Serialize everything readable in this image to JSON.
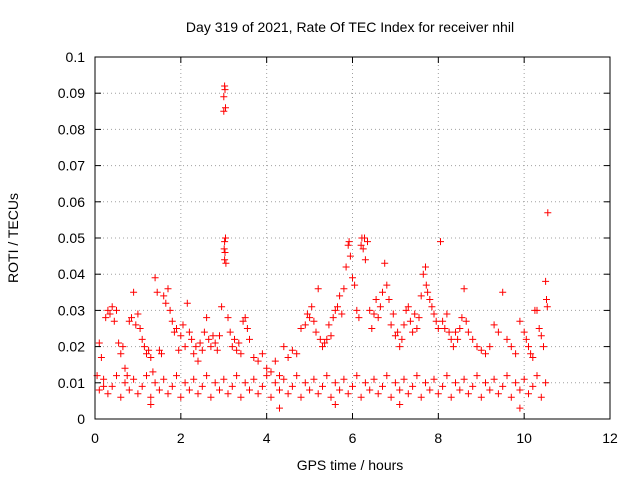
{
  "chart_data": {
    "type": "scatter",
    "title": "Day 319 of 2021, Rate Of TEC Index for receiver nhil",
    "xlabel": "GPS time / hours",
    "ylabel": "ROTI / TECUs",
    "xlim": [
      0,
      12
    ],
    "ylim": [
      0,
      0.1
    ],
    "xticks": [
      "0",
      "2",
      "4",
      "6",
      "8",
      "10",
      "12"
    ],
    "yticks": [
      "0",
      "0.01",
      "0.02",
      "0.03",
      "0.04",
      "0.05",
      "0.06",
      "0.07",
      "0.08",
      "0.09",
      "0.1"
    ],
    "grid": true,
    "marker": "+",
    "color": "#ff0000",
    "series": [
      {
        "name": "ROTI",
        "points": [
          [
            0.05,
            0.012
          ],
          [
            0.1,
            0.021
          ],
          [
            0.15,
            0.017
          ],
          [
            0.2,
            0.009
          ],
          [
            0.25,
            0.028
          ],
          [
            0.3,
            0.03
          ],
          [
            0.35,
            0.029
          ],
          [
            0.4,
            0.031
          ],
          [
            0.45,
            0.027
          ],
          [
            0.5,
            0.03
          ],
          [
            0.55,
            0.021
          ],
          [
            0.6,
            0.018
          ],
          [
            0.65,
            0.02
          ],
          [
            0.7,
            0.014
          ],
          [
            0.75,
            0.012
          ],
          [
            0.8,
            0.027
          ],
          [
            0.85,
            0.028
          ],
          [
            0.9,
            0.035
          ],
          [
            0.95,
            0.026
          ],
          [
            1.0,
            0.029
          ],
          [
            1.05,
            0.025
          ],
          [
            1.1,
            0.022
          ],
          [
            1.15,
            0.02
          ],
          [
            1.2,
            0.018
          ],
          [
            1.25,
            0.019
          ],
          [
            1.3,
            0.017
          ],
          [
            1.35,
            0.013
          ],
          [
            1.4,
            0.039
          ],
          [
            1.45,
            0.035
          ],
          [
            1.5,
            0.019
          ],
          [
            1.55,
            0.018
          ],
          [
            1.6,
            0.034
          ],
          [
            1.65,
            0.032
          ],
          [
            1.7,
            0.036
          ],
          [
            1.75,
            0.03
          ],
          [
            1.8,
            0.027
          ],
          [
            1.85,
            0.024
          ],
          [
            1.9,
            0.025
          ],
          [
            1.95,
            0.019
          ],
          [
            2.0,
            0.023
          ],
          [
            2.05,
            0.026
          ],
          [
            2.1,
            0.02
          ],
          [
            2.15,
            0.032
          ],
          [
            2.2,
            0.024
          ],
          [
            2.25,
            0.022
          ],
          [
            2.3,
            0.018
          ],
          [
            2.35,
            0.02
          ],
          [
            2.4,
            0.016
          ],
          [
            2.45,
            0.021
          ],
          [
            2.5,
            0.019
          ],
          [
            2.55,
            0.024
          ],
          [
            2.6,
            0.028
          ],
          [
            2.65,
            0.022
          ],
          [
            2.7,
            0.02
          ],
          [
            2.75,
            0.023
          ],
          [
            2.8,
            0.021
          ],
          [
            2.85,
            0.019
          ],
          [
            2.9,
            0.023
          ],
          [
            2.95,
            0.031
          ],
          [
            3.0,
            0.085
          ],
          [
            3.0,
            0.089
          ],
          [
            3.02,
            0.092
          ],
          [
            3.03,
            0.091
          ],
          [
            3.04,
            0.086
          ],
          [
            3.01,
            0.047
          ],
          [
            3.02,
            0.049
          ],
          [
            3.04,
            0.05
          ],
          [
            3.03,
            0.046
          ],
          [
            3.02,
            0.044
          ],
          [
            3.05,
            0.043
          ],
          [
            3.1,
            0.028
          ],
          [
            3.15,
            0.024
          ],
          [
            3.2,
            0.02
          ],
          [
            3.25,
            0.022
          ],
          [
            3.3,
            0.019
          ],
          [
            3.35,
            0.021
          ],
          [
            3.4,
            0.018
          ],
          [
            3.45,
            0.027
          ],
          [
            3.5,
            0.028
          ],
          [
            3.55,
            0.025
          ],
          [
            3.6,
            0.022
          ],
          [
            3.7,
            0.017
          ],
          [
            3.8,
            0.016
          ],
          [
            3.9,
            0.018
          ],
          [
            4.0,
            0.014
          ],
          [
            4.1,
            0.013
          ],
          [
            4.2,
            0.016
          ],
          [
            4.3,
            0.012
          ],
          [
            4.4,
            0.02
          ],
          [
            4.5,
            0.017
          ],
          [
            4.6,
            0.019
          ],
          [
            4.7,
            0.018
          ],
          [
            4.8,
            0.025
          ],
          [
            4.9,
            0.026
          ],
          [
            4.95,
            0.029
          ],
          [
            5.0,
            0.028
          ],
          [
            5.05,
            0.031
          ],
          [
            5.1,
            0.027
          ],
          [
            5.15,
            0.024
          ],
          [
            5.2,
            0.036
          ],
          [
            5.25,
            0.022
          ],
          [
            5.3,
            0.02
          ],
          [
            5.35,
            0.021
          ],
          [
            5.4,
            0.022
          ],
          [
            5.45,
            0.026
          ],
          [
            5.5,
            0.023
          ],
          [
            5.55,
            0.028
          ],
          [
            5.6,
            0.03
          ],
          [
            5.65,
            0.031
          ],
          [
            5.7,
            0.034
          ],
          [
            5.75,
            0.029
          ],
          [
            5.8,
            0.036
          ],
          [
            5.85,
            0.042
          ],
          [
            5.9,
            0.048
          ],
          [
            5.92,
            0.049
          ],
          [
            5.95,
            0.045
          ],
          [
            6.0,
            0.039
          ],
          [
            6.05,
            0.037
          ],
          [
            6.1,
            0.03
          ],
          [
            6.15,
            0.028
          ],
          [
            6.2,
            0.048
          ],
          [
            6.22,
            0.05
          ],
          [
            6.25,
            0.047
          ],
          [
            6.28,
            0.05
          ],
          [
            6.3,
            0.044
          ],
          [
            6.35,
            0.049
          ],
          [
            6.4,
            0.03
          ],
          [
            6.45,
            0.025
          ],
          [
            6.5,
            0.029
          ],
          [
            6.55,
            0.033
          ],
          [
            6.6,
            0.028
          ],
          [
            6.65,
            0.031
          ],
          [
            6.7,
            0.035
          ],
          [
            6.75,
            0.043
          ],
          [
            6.8,
            0.037
          ],
          [
            6.85,
            0.033
          ],
          [
            6.9,
            0.026
          ],
          [
            6.95,
            0.029
          ],
          [
            7.0,
            0.023
          ],
          [
            7.05,
            0.024
          ],
          [
            7.1,
            0.02
          ],
          [
            7.15,
            0.022
          ],
          [
            7.2,
            0.026
          ],
          [
            7.25,
            0.03
          ],
          [
            7.3,
            0.031
          ],
          [
            7.35,
            0.027
          ],
          [
            7.4,
            0.024
          ],
          [
            7.45,
            0.029
          ],
          [
            7.5,
            0.025
          ],
          [
            7.55,
            0.028
          ],
          [
            7.6,
            0.034
          ],
          [
            7.65,
            0.04
          ],
          [
            7.7,
            0.042
          ],
          [
            7.72,
            0.037
          ],
          [
            7.75,
            0.035
          ],
          [
            7.8,
            0.033
          ],
          [
            7.85,
            0.031
          ],
          [
            7.9,
            0.029
          ],
          [
            7.95,
            0.027
          ],
          [
            8.0,
            0.025
          ],
          [
            8.05,
            0.049
          ],
          [
            8.1,
            0.027
          ],
          [
            8.15,
            0.025
          ],
          [
            8.2,
            0.029
          ],
          [
            8.25,
            0.024
          ],
          [
            8.3,
            0.022
          ],
          [
            8.35,
            0.02
          ],
          [
            8.4,
            0.024
          ],
          [
            8.45,
            0.022
          ],
          [
            8.5,
            0.025
          ],
          [
            8.55,
            0.028
          ],
          [
            8.6,
            0.036
          ],
          [
            8.65,
            0.027
          ],
          [
            8.7,
            0.024
          ],
          [
            8.8,
            0.022
          ],
          [
            8.9,
            0.02
          ],
          [
            9.0,
            0.019
          ],
          [
            9.1,
            0.018
          ],
          [
            9.2,
            0.02
          ],
          [
            9.3,
            0.026
          ],
          [
            9.4,
            0.024
          ],
          [
            9.5,
            0.035
          ],
          [
            9.6,
            0.022
          ],
          [
            9.7,
            0.02
          ],
          [
            9.8,
            0.018
          ],
          [
            9.9,
            0.027
          ],
          [
            10.0,
            0.024
          ],
          [
            10.05,
            0.022
          ],
          [
            10.1,
            0.02
          ],
          [
            10.15,
            0.018
          ],
          [
            10.2,
            0.017
          ],
          [
            10.25,
            0.03
          ],
          [
            10.3,
            0.03
          ],
          [
            10.35,
            0.025
          ],
          [
            10.4,
            0.023
          ],
          [
            10.45,
            0.02
          ],
          [
            10.5,
            0.038
          ],
          [
            10.52,
            0.033
          ],
          [
            10.54,
            0.031
          ],
          [
            10.55,
            0.057
          ],
          [
            0.1,
            0.008
          ],
          [
            0.2,
            0.011
          ],
          [
            0.3,
            0.007
          ],
          [
            0.4,
            0.009
          ],
          [
            0.5,
            0.012
          ],
          [
            0.6,
            0.006
          ],
          [
            0.7,
            0.01
          ],
          [
            0.8,
            0.008
          ],
          [
            0.9,
            0.011
          ],
          [
            1.0,
            0.007
          ],
          [
            1.1,
            0.009
          ],
          [
            1.2,
            0.012
          ],
          [
            1.3,
            0.006
          ],
          [
            1.4,
            0.01
          ],
          [
            1.5,
            0.008
          ],
          [
            1.6,
            0.011
          ],
          [
            1.7,
            0.007
          ],
          [
            1.8,
            0.009
          ],
          [
            1.9,
            0.012
          ],
          [
            2.0,
            0.006
          ],
          [
            2.1,
            0.01
          ],
          [
            2.2,
            0.008
          ],
          [
            2.3,
            0.011
          ],
          [
            2.4,
            0.007
          ],
          [
            2.5,
            0.009
          ],
          [
            2.6,
            0.012
          ],
          [
            2.7,
            0.006
          ],
          [
            2.8,
            0.01
          ],
          [
            2.9,
            0.008
          ],
          [
            3.0,
            0.011
          ],
          [
            3.1,
            0.007
          ],
          [
            3.2,
            0.009
          ],
          [
            3.3,
            0.012
          ],
          [
            3.4,
            0.006
          ],
          [
            3.5,
            0.01
          ],
          [
            3.6,
            0.008
          ],
          [
            3.7,
            0.011
          ],
          [
            3.8,
            0.007
          ],
          [
            3.9,
            0.009
          ],
          [
            4.0,
            0.012
          ],
          [
            4.1,
            0.006
          ],
          [
            4.2,
            0.01
          ],
          [
            4.3,
            0.008
          ],
          [
            4.4,
            0.011
          ],
          [
            4.5,
            0.007
          ],
          [
            4.6,
            0.009
          ],
          [
            4.7,
            0.012
          ],
          [
            4.8,
            0.006
          ],
          [
            4.9,
            0.01
          ],
          [
            5.0,
            0.008
          ],
          [
            5.1,
            0.011
          ],
          [
            5.2,
            0.007
          ],
          [
            5.3,
            0.009
          ],
          [
            5.4,
            0.012
          ],
          [
            5.5,
            0.006
          ],
          [
            5.6,
            0.01
          ],
          [
            5.7,
            0.008
          ],
          [
            5.8,
            0.011
          ],
          [
            5.9,
            0.007
          ],
          [
            6.0,
            0.009
          ],
          [
            6.1,
            0.012
          ],
          [
            6.2,
            0.006
          ],
          [
            6.3,
            0.01
          ],
          [
            6.4,
            0.008
          ],
          [
            6.5,
            0.011
          ],
          [
            6.6,
            0.007
          ],
          [
            6.7,
            0.009
          ],
          [
            6.8,
            0.012
          ],
          [
            6.9,
            0.006
          ],
          [
            7.0,
            0.01
          ],
          [
            7.1,
            0.008
          ],
          [
            7.2,
            0.011
          ],
          [
            7.3,
            0.007
          ],
          [
            7.4,
            0.009
          ],
          [
            7.5,
            0.012
          ],
          [
            7.6,
            0.006
          ],
          [
            7.7,
            0.01
          ],
          [
            7.8,
            0.008
          ],
          [
            7.9,
            0.011
          ],
          [
            8.0,
            0.007
          ],
          [
            8.1,
            0.009
          ],
          [
            8.2,
            0.012
          ],
          [
            8.3,
            0.006
          ],
          [
            8.4,
            0.01
          ],
          [
            8.5,
            0.008
          ],
          [
            8.6,
            0.011
          ],
          [
            8.7,
            0.007
          ],
          [
            8.8,
            0.009
          ],
          [
            8.9,
            0.012
          ],
          [
            9.0,
            0.006
          ],
          [
            9.1,
            0.01
          ],
          [
            9.2,
            0.008
          ],
          [
            9.3,
            0.011
          ],
          [
            9.4,
            0.007
          ],
          [
            9.5,
            0.009
          ],
          [
            9.6,
            0.012
          ],
          [
            9.7,
            0.006
          ],
          [
            9.8,
            0.01
          ],
          [
            9.9,
            0.008
          ],
          [
            10.0,
            0.011
          ],
          [
            10.1,
            0.007
          ],
          [
            10.2,
            0.009
          ],
          [
            10.3,
            0.012
          ],
          [
            10.4,
            0.006
          ],
          [
            10.5,
            0.01
          ],
          [
            4.3,
            0.003
          ],
          [
            7.1,
            0.004
          ],
          [
            9.9,
            0.003
          ],
          [
            1.3,
            0.004
          ],
          [
            5.6,
            0.004
          ]
        ]
      }
    ]
  }
}
